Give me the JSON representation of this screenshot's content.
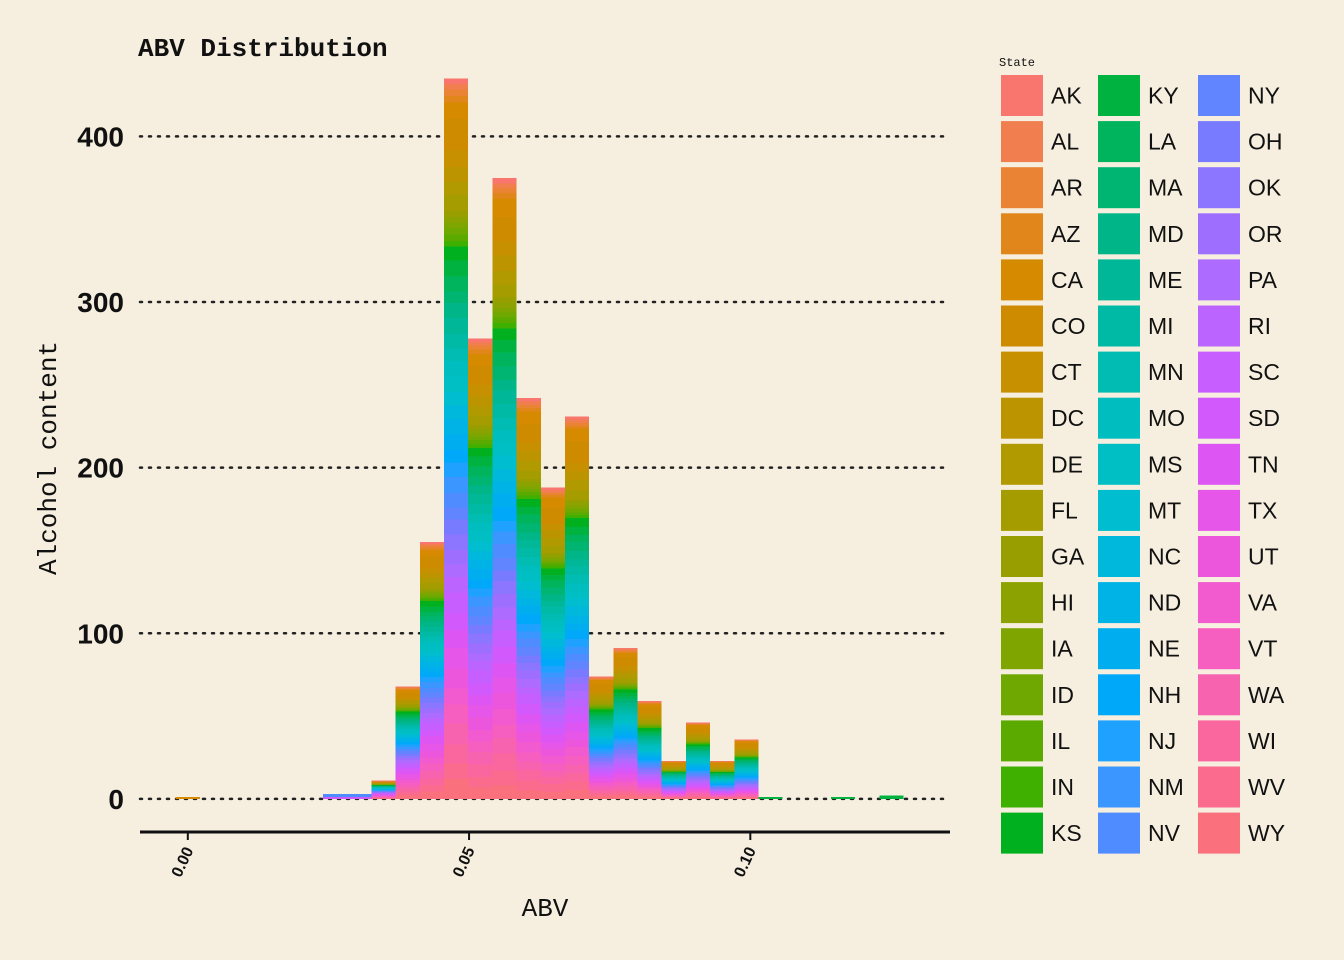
{
  "chart_data": {
    "type": "bar",
    "stacked": true,
    "title": "ABV Distribution",
    "xlabel": "ABV",
    "ylabel": "Alcohol content",
    "xlim": [
      -0.0085,
      0.1355
    ],
    "ylim": [
      -20,
      425
    ],
    "x_ticks": [
      0.0,
      0.05,
      0.1
    ],
    "x_tick_labels": [
      "0.00",
      "0.05",
      "0.10"
    ],
    "y_ticks": [
      0,
      100,
      200,
      300,
      400
    ],
    "y_tick_labels": [
      "0",
      "100",
      "200",
      "300",
      "400"
    ],
    "grid": "horizontal-dotted",
    "legend_title": "State",
    "legend_position": "right",
    "bin_width": 0.0043,
    "x": [
      0.0,
      0.0262,
      0.0305,
      0.0348,
      0.0391,
      0.0434,
      0.0477,
      0.052,
      0.0563,
      0.0606,
      0.0649,
      0.0692,
      0.0735,
      0.0778,
      0.0821,
      0.0864,
      0.0907,
      0.095,
      0.0993,
      0.1036,
      0.1165,
      0.1251
    ],
    "totals": [
      1,
      3,
      3,
      11,
      68,
      155,
      435,
      278,
      375,
      242,
      188,
      231,
      74,
      91,
      59,
      23,
      46,
      23,
      36,
      1,
      1,
      2
    ],
    "states": [
      "AK",
      "AL",
      "AR",
      "AZ",
      "CA",
      "CO",
      "CT",
      "DC",
      "DE",
      "FL",
      "GA",
      "HI",
      "IA",
      "ID",
      "IL",
      "IN",
      "KS",
      "KY",
      "LA",
      "MA",
      "MD",
      "ME",
      "MI",
      "MN",
      "MO",
      "MS",
      "MT",
      "NC",
      "ND",
      "NE",
      "NH",
      "NJ",
      "NM",
      "NV",
      "NY",
      "OH",
      "OK",
      "OR",
      "PA",
      "RI",
      "SC",
      "SD",
      "TN",
      "TX",
      "UT",
      "VA",
      "VT",
      "WA",
      "WI",
      "WV",
      "WY"
    ],
    "colors": [
      "#F8766D",
      "#F07E4F",
      "#EB8335",
      "#E0861A",
      "#D68A00",
      "#CE8B00",
      "#C69000",
      "#BC9400",
      "#B19900",
      "#A59C00",
      "#999E00",
      "#8CA200",
      "#7FA500",
      "#6EA800",
      "#5AAA00",
      "#3FAF00",
      "#00B01E",
      "#00B340",
      "#00B45D",
      "#00B472",
      "#00B688",
      "#00B898",
      "#00BAA6",
      "#00BCB2",
      "#00BEC0",
      "#00BFC4",
      "#00BDCF",
      "#00B8DB",
      "#00B3E6",
      "#00AEF0",
      "#00A8FA",
      "#1FA1FF",
      "#3B97FF",
      "#4F8CFF",
      "#6185FF",
      "#787BFF",
      "#8C75FF",
      "#9E6FFF",
      "#AD6BFF",
      "#BB64FF",
      "#C75EFF",
      "#D25AFC",
      "#DD55F3",
      "#E556E9",
      "#EC56DD",
      "#F25ACF",
      "#F65EBF",
      "#F863AF",
      "#F9679E",
      "#FA6B8D",
      "#FB707D"
    ]
  }
}
